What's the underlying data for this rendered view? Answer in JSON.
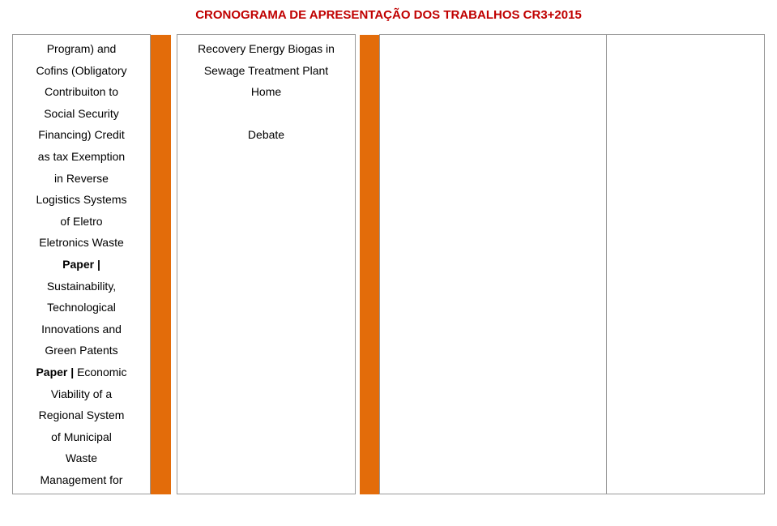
{
  "header": {
    "title": "CRONOGRAMA DE APRESENTAÇÃO DOS TRABALHOS CR3+2015",
    "color": "#c00000"
  },
  "column1": {
    "lines": [
      {
        "text": "Program) and",
        "bold": false
      },
      {
        "text": "Cofins (Obligatory",
        "bold": false
      },
      {
        "text": "Contribuiton to",
        "bold": false
      },
      {
        "text": "Social Security",
        "bold": false
      },
      {
        "text": "Financing) Credit",
        "bold": false
      },
      {
        "text": "as tax Exemption",
        "bold": false
      },
      {
        "text": "in Reverse",
        "bold": false
      },
      {
        "text": "Logistics Systems",
        "bold": false
      },
      {
        "text": "of Eletro",
        "bold": false
      },
      {
        "text": "Eletronics Waste",
        "bold": false
      },
      {
        "text": "Paper |",
        "bold": true
      },
      {
        "text": "Sustainability,",
        "bold": false
      },
      {
        "text": "Technological",
        "bold": false
      },
      {
        "text": "Innovations and",
        "bold": false
      },
      {
        "text": "Green Patents",
        "bold": false
      },
      {
        "text": "Paper | ",
        "bold": true,
        "suffix": "Economic",
        "suffix_bold": false
      },
      {
        "text": "Viability of a",
        "bold": false
      },
      {
        "text": "Regional System",
        "bold": false
      },
      {
        "text": "of Municipal",
        "bold": false
      },
      {
        "text": "Waste",
        "bold": false
      },
      {
        "text": "Management for",
        "bold": false
      }
    ]
  },
  "column2": {
    "lines": [
      {
        "text": "Recovery Energy Biogas in",
        "bold": false
      },
      {
        "text": "Sewage Treatment Plant",
        "bold": false
      },
      {
        "text": "Home",
        "bold": false
      },
      {
        "text": "",
        "bold": false
      },
      {
        "text": "Debate",
        "bold": false
      }
    ]
  },
  "colors": {
    "header_text": "#c00000",
    "body_text": "#000000",
    "border": "#999999",
    "background": "#ffffff",
    "separator_fill": "#e36c0a"
  }
}
